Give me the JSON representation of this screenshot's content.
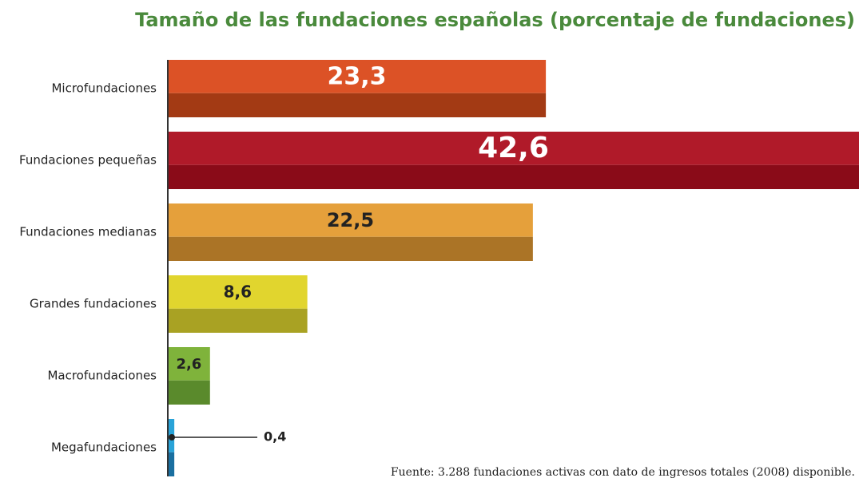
{
  "chart_data": {
    "type": "bar",
    "orientation": "horizontal",
    "title": "Tamaño de las fundaciones españolas (porcentaje de fundaciones)",
    "categories": [
      "Microfundaciones",
      "Fundaciones pequeñas",
      "Fundaciones medianas",
      "Grandes fundaciones",
      "Macrofundaciones",
      "Megafundaciones"
    ],
    "values": [
      23.3,
      42.6,
      22.5,
      8.6,
      2.6,
      0.4
    ],
    "value_labels": [
      "23,3",
      "42,6",
      "22,5",
      "8,6",
      "2,6",
      "0,4"
    ],
    "colors": [
      "#dc5226",
      "#b01a29",
      "#e5a03b",
      "#e1d52e",
      "#7fb33b",
      "#29a3d8"
    ],
    "shade_colors": [
      "#a33a14",
      "#8a0b18",
      "#ab7426",
      "#a9a223",
      "#5a8a2c",
      "#1a6fa0"
    ],
    "label_colors": [
      "#ffffff",
      "#ffffff",
      "#222222",
      "#222222",
      "#222222",
      "#222222"
    ],
    "note": "Fuente: 3.288 fundaciones activas con dato de ingresos totales (2008) disponible."
  }
}
